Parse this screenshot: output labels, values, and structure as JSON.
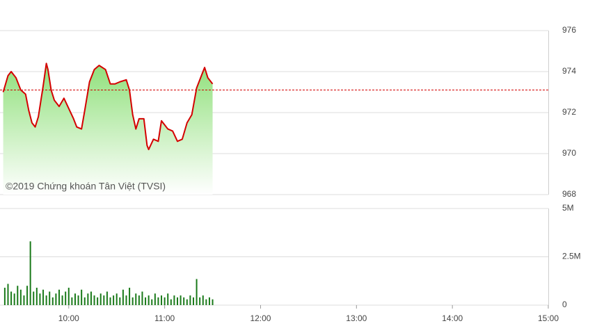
{
  "chart_data": [
    {
      "type": "line",
      "annotation": "©2019 Chứng khoán Tân Việt (TVSI)",
      "x": [
        559,
        562,
        564,
        567,
        570,
        573,
        575,
        577,
        579,
        581,
        584,
        586,
        587,
        589,
        591,
        594,
        597,
        600,
        603,
        605,
        608,
        610,
        613,
        616,
        619,
        623,
        626,
        629,
        632,
        636,
        638,
        640,
        642,
        644,
        647,
        649,
        650,
        653,
        656,
        658,
        662,
        665,
        668,
        671,
        674,
        677,
        680,
        683,
        685,
        687,
        690
      ],
      "values": [
        973.0,
        973.8,
        974.0,
        973.7,
        973.1,
        972.9,
        972.1,
        971.5,
        971.3,
        971.8,
        973.3,
        974.4,
        974.1,
        973.1,
        972.6,
        972.3,
        972.7,
        972.2,
        971.7,
        971.3,
        971.2,
        972.1,
        973.5,
        974.1,
        974.3,
        974.1,
        973.4,
        973.4,
        973.5,
        973.6,
        973.1,
        971.9,
        971.2,
        971.7,
        971.7,
        970.4,
        970.2,
        970.7,
        970.6,
        971.6,
        971.2,
        971.1,
        970.6,
        970.7,
        971.5,
        971.9,
        973.2,
        973.8,
        974.2,
        973.7,
        973.4
      ],
      "color": "#d40000",
      "fill": "#8fe07a",
      "reference_line": 973.1,
      "xlim": [
        557,
        900
      ],
      "ylim": [
        968,
        976
      ],
      "yticks": [
        968,
        970,
        972,
        974,
        976
      ],
      "grid": true
    },
    {
      "type": "bar",
      "x": [
        560,
        562,
        564,
        566,
        568,
        570,
        572,
        574,
        576,
        578,
        580,
        582,
        584,
        586,
        588,
        590,
        592,
        594,
        596,
        598,
        600,
        602,
        604,
        606,
        608,
        610,
        612,
        614,
        616,
        618,
        620,
        622,
        624,
        626,
        628,
        630,
        632,
        634,
        636,
        638,
        640,
        642,
        644,
        646,
        648,
        650,
        652,
        654,
        656,
        658,
        660,
        662,
        664,
        666,
        668,
        670,
        672,
        674,
        676,
        678,
        680,
        682,
        684,
        686,
        688,
        690
      ],
      "values": [
        0.9,
        1.1,
        0.7,
        0.6,
        1.0,
        0.8,
        0.5,
        1.0,
        3.3,
        0.7,
        0.9,
        0.6,
        0.8,
        0.5,
        0.7,
        0.4,
        0.6,
        0.8,
        0.5,
        0.7,
        0.9,
        0.4,
        0.6,
        0.5,
        0.8,
        0.4,
        0.6,
        0.7,
        0.5,
        0.4,
        0.6,
        0.5,
        0.7,
        0.4,
        0.5,
        0.6,
        0.4,
        0.8,
        0.5,
        0.9,
        0.4,
        0.6,
        0.5,
        0.7,
        0.4,
        0.5,
        0.3,
        0.6,
        0.4,
        0.5,
        0.4,
        0.6,
        0.3,
        0.5,
        0.4,
        0.5,
        0.4,
        0.3,
        0.5,
        0.4,
        1.35,
        0.4,
        0.5,
        0.3,
        0.4,
        0.3
      ],
      "color": "#1a7a1a",
      "xlim": [
        557,
        900
      ],
      "xticks": [
        {
          "value": 600,
          "label": "10:00"
        },
        {
          "value": 660,
          "label": "11:00"
        },
        {
          "value": 720,
          "label": "12:00"
        },
        {
          "value": 780,
          "label": "13:00"
        },
        {
          "value": 840,
          "label": "14:00"
        },
        {
          "value": 900,
          "label": "15:00"
        }
      ],
      "ylim": [
        0,
        5
      ],
      "yticks": [
        0,
        {
          "value": 2.5,
          "label": "2.5M"
        },
        {
          "value": 5,
          "label": "5M"
        }
      ],
      "grid": true
    }
  ]
}
